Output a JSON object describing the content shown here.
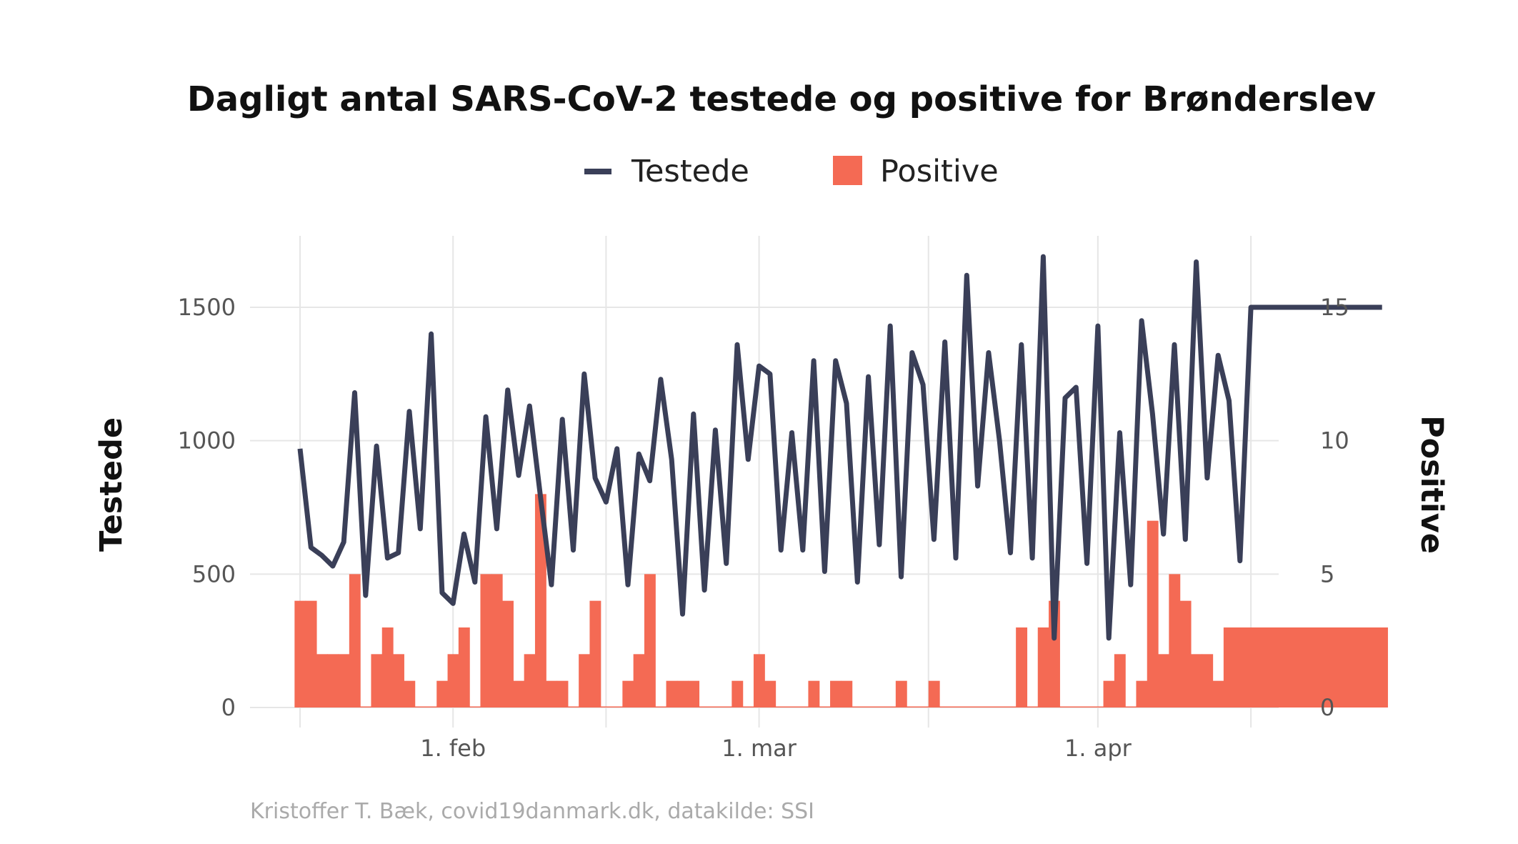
{
  "chart_data": {
    "type": "bar+line",
    "title": "Dagligt antal SARS-CoV-2 testede og positive for Brønderslev",
    "legend": [
      {
        "label": "Testede",
        "kind": "line",
        "color": "#3a3f58"
      },
      {
        "label": "Positive",
        "kind": "bar",
        "color": "#f46a54"
      }
    ],
    "legend_position": "top",
    "ylabel_left": "Testede",
    "ylabel_right": "Positive",
    "ylim_left": [
      0,
      1750
    ],
    "ylim_right": [
      0,
      17.5
    ],
    "y_ticks_left": [
      0,
      500,
      1000,
      1500
    ],
    "y_ticks_right": [
      0,
      5,
      10,
      15
    ],
    "x_tick_labels": [
      "1. feb",
      "1. mar",
      "1. apr"
    ],
    "x_tick_dates": [
      "2021-02-01",
      "2021-03-01",
      "2021-04-01"
    ],
    "x": [
      "2021-01-18",
      "2021-01-19",
      "2021-01-20",
      "2021-01-21",
      "2021-01-22",
      "2021-01-23",
      "2021-01-24",
      "2021-01-25",
      "2021-01-26",
      "2021-01-27",
      "2021-01-28",
      "2021-01-29",
      "2021-01-30",
      "2021-01-31",
      "2021-02-01",
      "2021-02-02",
      "2021-02-03",
      "2021-02-04",
      "2021-02-05",
      "2021-02-06",
      "2021-02-07",
      "2021-02-08",
      "2021-02-09",
      "2021-02-10",
      "2021-02-11",
      "2021-02-12",
      "2021-02-13",
      "2021-02-14",
      "2021-02-15",
      "2021-02-16",
      "2021-02-17",
      "2021-02-18",
      "2021-02-19",
      "2021-02-20",
      "2021-02-21",
      "2021-02-22",
      "2021-02-23",
      "2021-02-24",
      "2021-02-25",
      "2021-02-26",
      "2021-02-27",
      "2021-02-28",
      "2021-03-01",
      "2021-03-02",
      "2021-03-03",
      "2021-03-04",
      "2021-03-05",
      "2021-03-06",
      "2021-03-07",
      "2021-03-08",
      "2021-03-09",
      "2021-03-10",
      "2021-03-11",
      "2021-03-12",
      "2021-03-13",
      "2021-03-14",
      "2021-03-15",
      "2021-03-16",
      "2021-03-17",
      "2021-03-18",
      "2021-03-19",
      "2021-03-20",
      "2021-03-21",
      "2021-03-22",
      "2021-03-23",
      "2021-03-24",
      "2021-03-25",
      "2021-03-26",
      "2021-03-27",
      "2021-03-28",
      "2021-03-29",
      "2021-03-30",
      "2021-03-31",
      "2021-04-01",
      "2021-04-02",
      "2021-04-03",
      "2021-04-04",
      "2021-04-05",
      "2021-04-06",
      "2021-04-07",
      "2021-04-08",
      "2021-04-09",
      "2021-04-10",
      "2021-04-11",
      "2021-04-12",
      "2021-04-13",
      "2021-04-14",
      "2021-04-15",
      "2021-04-16",
      "2021-04-17",
      "2021-04-18",
      "2021-04-19",
      "2021-04-20",
      "2021-04-21",
      "2021-04-22",
      "2021-04-23",
      "2021-04-24",
      "2021-04-25",
      "2021-04-26",
      "2021-04-27"
    ],
    "series": [
      {
        "name": "Testede",
        "type": "line",
        "axis": "left",
        "values": [
          970,
          600,
          570,
          530,
          620,
          1180,
          420,
          980,
          560,
          580,
          1110,
          670,
          1400,
          430,
          390,
          650,
          470,
          1090,
          670,
          1190,
          870,
          1130,
          790,
          460,
          1080,
          590,
          1250,
          860,
          770,
          970,
          460,
          950,
          850,
          1230,
          930,
          350,
          1100,
          440,
          1040,
          540,
          1360,
          930,
          1280,
          1250,
          590,
          1030,
          590,
          1300,
          510,
          1300,
          1140,
          470,
          1240,
          610,
          1430,
          490,
          1330,
          1210,
          630,
          1370,
          560,
          1620,
          830,
          1330,
          1000,
          580,
          1360,
          560,
          1690,
          260,
          1160,
          1200,
          540,
          1430,
          260,
          1030,
          460,
          1450,
          1100,
          650,
          1360,
          630,
          1670,
          860,
          1320,
          1150,
          550,
          1500,
          1500,
          1500,
          1500,
          1500,
          1500,
          1500,
          1500,
          1500,
          1500,
          1500,
          1500,
          1500
        ],
        "color": "#3a3f58"
      },
      {
        "name": "Positive",
        "type": "bar",
        "axis": "right",
        "values": [
          4,
          4,
          2,
          2,
          2,
          5,
          0,
          2,
          3,
          2,
          1,
          0,
          0,
          1,
          2,
          3,
          0,
          5,
          5,
          4,
          1,
          2,
          8,
          1,
          1,
          0,
          2,
          4,
          0,
          0,
          1,
          2,
          5,
          0,
          1,
          1,
          1,
          0,
          0,
          0,
          1,
          0,
          2,
          1,
          0,
          0,
          0,
          1,
          0,
          1,
          1,
          0,
          0,
          0,
          0,
          1,
          0,
          0,
          1,
          0,
          0,
          0,
          0,
          0,
          0,
          0,
          3,
          0,
          3,
          4,
          0,
          0,
          0,
          0,
          1,
          2,
          0,
          1,
          7,
          2,
          5,
          4,
          2,
          2,
          1,
          3,
          3,
          3,
          3,
          3,
          3,
          3,
          3,
          3,
          3,
          3,
          3,
          3,
          3,
          3
        ],
        "color": "#f46a54"
      }
    ],
    "grid": true,
    "caption": "Kristoffer T. Bæk, covid19danmark.dk, datakilde: SSI"
  }
}
